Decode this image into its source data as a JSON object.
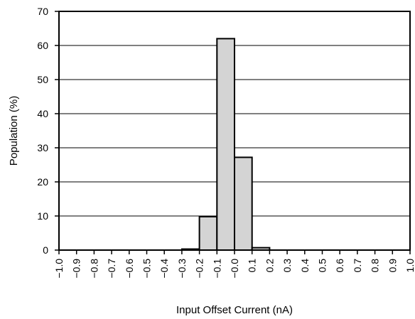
{
  "chart_data": {
    "type": "bar",
    "title": "",
    "xlabel": "Input Offset Current (nA)",
    "ylabel": "Population (%)",
    "ylim": [
      0,
      70
    ],
    "yticks": [
      0,
      10,
      20,
      30,
      40,
      50,
      60,
      70
    ],
    "xlim": [
      -1.0,
      1.0
    ],
    "xticks": [
      "−1.0",
      "−0.9",
      "−0.8",
      "−0.7",
      "−0.6",
      "−0.5",
      "−0.4",
      "−0.3",
      "−0.2",
      "−0.1",
      "−0.0",
      "0.1",
      "0.2",
      "0.3",
      "0.4",
      "0.5",
      "0.6",
      "0.7",
      "0.8",
      "0.9",
      "1.0"
    ],
    "grid": "horizontal",
    "bar_fill": "#d4d4d4",
    "bins": [
      {
        "x0": -0.3,
        "x1": -0.2,
        "value": 0.3
      },
      {
        "x0": -0.2,
        "x1": -0.1,
        "value": 9.8
      },
      {
        "x0": -0.1,
        "x1": 0.0,
        "value": 62
      },
      {
        "x0": 0.0,
        "x1": 0.1,
        "value": 27.2
      },
      {
        "x0": 0.1,
        "x1": 0.2,
        "value": 0.7
      }
    ]
  }
}
